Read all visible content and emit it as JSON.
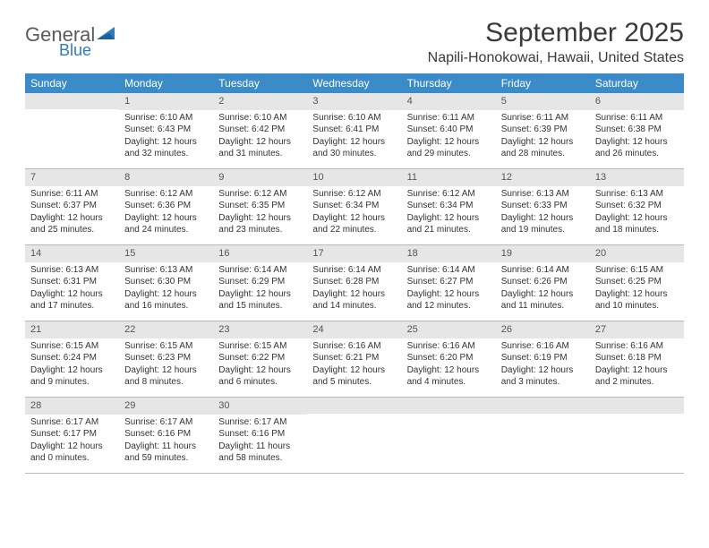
{
  "logo": {
    "word1": "General",
    "word2": "Blue"
  },
  "header": {
    "month_title": "September 2025",
    "location": "Napili-Honokowai, Hawaii, United States"
  },
  "colors": {
    "header_band": "#3b8bc8",
    "daynum_band": "#e6e6e6",
    "row_border": "#b8b8b8",
    "text": "#333333",
    "logo_gray": "#5a5a5a",
    "logo_blue": "#2f7bbf",
    "background": "#ffffff"
  },
  "weekdays": [
    "Sunday",
    "Monday",
    "Tuesday",
    "Wednesday",
    "Thursday",
    "Friday",
    "Saturday"
  ],
  "weeks": [
    [
      null,
      {
        "n": "1",
        "sr": "Sunrise: 6:10 AM",
        "ss": "Sunset: 6:43 PM",
        "d1": "Daylight: 12 hours",
        "d2": "and 32 minutes."
      },
      {
        "n": "2",
        "sr": "Sunrise: 6:10 AM",
        "ss": "Sunset: 6:42 PM",
        "d1": "Daylight: 12 hours",
        "d2": "and 31 minutes."
      },
      {
        "n": "3",
        "sr": "Sunrise: 6:10 AM",
        "ss": "Sunset: 6:41 PM",
        "d1": "Daylight: 12 hours",
        "d2": "and 30 minutes."
      },
      {
        "n": "4",
        "sr": "Sunrise: 6:11 AM",
        "ss": "Sunset: 6:40 PM",
        "d1": "Daylight: 12 hours",
        "d2": "and 29 minutes."
      },
      {
        "n": "5",
        "sr": "Sunrise: 6:11 AM",
        "ss": "Sunset: 6:39 PM",
        "d1": "Daylight: 12 hours",
        "d2": "and 28 minutes."
      },
      {
        "n": "6",
        "sr": "Sunrise: 6:11 AM",
        "ss": "Sunset: 6:38 PM",
        "d1": "Daylight: 12 hours",
        "d2": "and 26 minutes."
      }
    ],
    [
      {
        "n": "7",
        "sr": "Sunrise: 6:11 AM",
        "ss": "Sunset: 6:37 PM",
        "d1": "Daylight: 12 hours",
        "d2": "and 25 minutes."
      },
      {
        "n": "8",
        "sr": "Sunrise: 6:12 AM",
        "ss": "Sunset: 6:36 PM",
        "d1": "Daylight: 12 hours",
        "d2": "and 24 minutes."
      },
      {
        "n": "9",
        "sr": "Sunrise: 6:12 AM",
        "ss": "Sunset: 6:35 PM",
        "d1": "Daylight: 12 hours",
        "d2": "and 23 minutes."
      },
      {
        "n": "10",
        "sr": "Sunrise: 6:12 AM",
        "ss": "Sunset: 6:34 PM",
        "d1": "Daylight: 12 hours",
        "d2": "and 22 minutes."
      },
      {
        "n": "11",
        "sr": "Sunrise: 6:12 AM",
        "ss": "Sunset: 6:34 PM",
        "d1": "Daylight: 12 hours",
        "d2": "and 21 minutes."
      },
      {
        "n": "12",
        "sr": "Sunrise: 6:13 AM",
        "ss": "Sunset: 6:33 PM",
        "d1": "Daylight: 12 hours",
        "d2": "and 19 minutes."
      },
      {
        "n": "13",
        "sr": "Sunrise: 6:13 AM",
        "ss": "Sunset: 6:32 PM",
        "d1": "Daylight: 12 hours",
        "d2": "and 18 minutes."
      }
    ],
    [
      {
        "n": "14",
        "sr": "Sunrise: 6:13 AM",
        "ss": "Sunset: 6:31 PM",
        "d1": "Daylight: 12 hours",
        "d2": "and 17 minutes."
      },
      {
        "n": "15",
        "sr": "Sunrise: 6:13 AM",
        "ss": "Sunset: 6:30 PM",
        "d1": "Daylight: 12 hours",
        "d2": "and 16 minutes."
      },
      {
        "n": "16",
        "sr": "Sunrise: 6:14 AM",
        "ss": "Sunset: 6:29 PM",
        "d1": "Daylight: 12 hours",
        "d2": "and 15 minutes."
      },
      {
        "n": "17",
        "sr": "Sunrise: 6:14 AM",
        "ss": "Sunset: 6:28 PM",
        "d1": "Daylight: 12 hours",
        "d2": "and 14 minutes."
      },
      {
        "n": "18",
        "sr": "Sunrise: 6:14 AM",
        "ss": "Sunset: 6:27 PM",
        "d1": "Daylight: 12 hours",
        "d2": "and 12 minutes."
      },
      {
        "n": "19",
        "sr": "Sunrise: 6:14 AM",
        "ss": "Sunset: 6:26 PM",
        "d1": "Daylight: 12 hours",
        "d2": "and 11 minutes."
      },
      {
        "n": "20",
        "sr": "Sunrise: 6:15 AM",
        "ss": "Sunset: 6:25 PM",
        "d1": "Daylight: 12 hours",
        "d2": "and 10 minutes."
      }
    ],
    [
      {
        "n": "21",
        "sr": "Sunrise: 6:15 AM",
        "ss": "Sunset: 6:24 PM",
        "d1": "Daylight: 12 hours",
        "d2": "and 9 minutes."
      },
      {
        "n": "22",
        "sr": "Sunrise: 6:15 AM",
        "ss": "Sunset: 6:23 PM",
        "d1": "Daylight: 12 hours",
        "d2": "and 8 minutes."
      },
      {
        "n": "23",
        "sr": "Sunrise: 6:15 AM",
        "ss": "Sunset: 6:22 PM",
        "d1": "Daylight: 12 hours",
        "d2": "and 6 minutes."
      },
      {
        "n": "24",
        "sr": "Sunrise: 6:16 AM",
        "ss": "Sunset: 6:21 PM",
        "d1": "Daylight: 12 hours",
        "d2": "and 5 minutes."
      },
      {
        "n": "25",
        "sr": "Sunrise: 6:16 AM",
        "ss": "Sunset: 6:20 PM",
        "d1": "Daylight: 12 hours",
        "d2": "and 4 minutes."
      },
      {
        "n": "26",
        "sr": "Sunrise: 6:16 AM",
        "ss": "Sunset: 6:19 PM",
        "d1": "Daylight: 12 hours",
        "d2": "and 3 minutes."
      },
      {
        "n": "27",
        "sr": "Sunrise: 6:16 AM",
        "ss": "Sunset: 6:18 PM",
        "d1": "Daylight: 12 hours",
        "d2": "and 2 minutes."
      }
    ],
    [
      {
        "n": "28",
        "sr": "Sunrise: 6:17 AM",
        "ss": "Sunset: 6:17 PM",
        "d1": "Daylight: 12 hours",
        "d2": "and 0 minutes."
      },
      {
        "n": "29",
        "sr": "Sunrise: 6:17 AM",
        "ss": "Sunset: 6:16 PM",
        "d1": "Daylight: 11 hours",
        "d2": "and 59 minutes."
      },
      {
        "n": "30",
        "sr": "Sunrise: 6:17 AM",
        "ss": "Sunset: 6:16 PM",
        "d1": "Daylight: 11 hours",
        "d2": "and 58 minutes."
      },
      null,
      null,
      null,
      null
    ]
  ]
}
